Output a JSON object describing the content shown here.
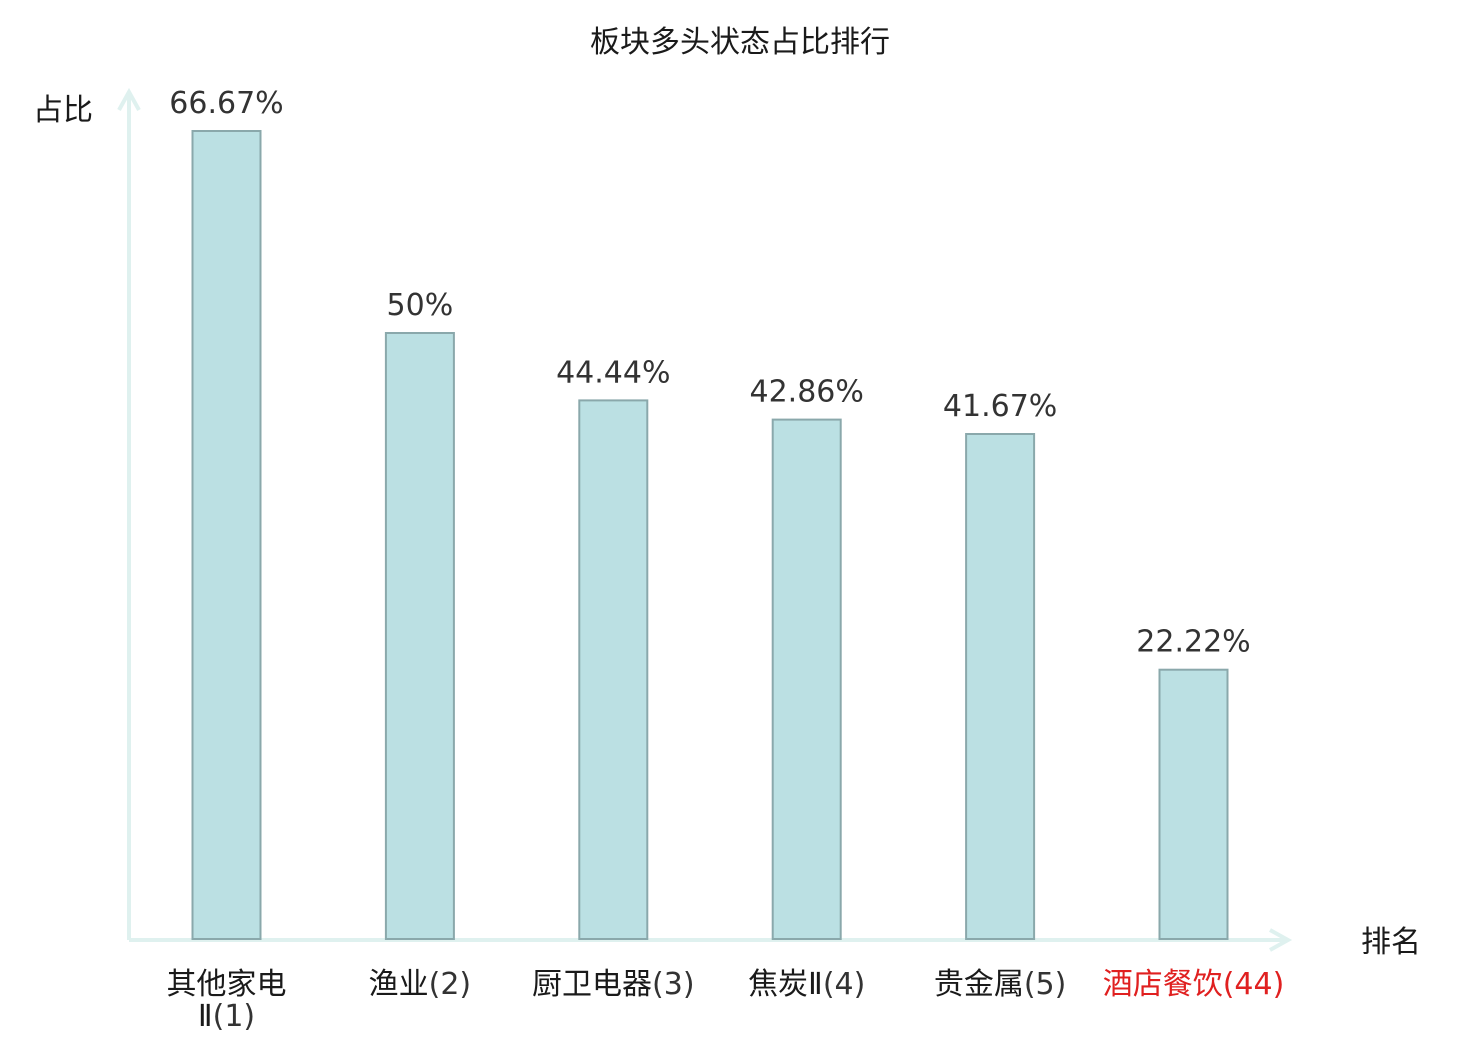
{
  "chart_data": {
    "type": "bar",
    "title": "板块多头状态占比排行",
    "ylabel": "占比",
    "xlabel": "排名",
    "categories": [
      {
        "name": "其他家电Ⅱ",
        "rank": "(1)"
      },
      {
        "name": "渔业",
        "rank": "(2)"
      },
      {
        "name": "厨卫电器",
        "rank": "(3)"
      },
      {
        "name": "焦炭Ⅱ",
        "rank": "(4)"
      },
      {
        "name": "贵金属",
        "rank": "(5)"
      },
      {
        "name": "酒店餐饮",
        "rank": "(44)"
      }
    ],
    "values": [
      66.67,
      50,
      44.44,
      42.86,
      41.67,
      22.22
    ],
    "value_labels": [
      "66.67%",
      "50%",
      "44.44%",
      "42.86%",
      "41.67%",
      "22.22%"
    ],
    "ylim": [
      0,
      66.67
    ],
    "grid": false,
    "colors": {
      "bar_fill": "#bbe0e3",
      "bar_stroke": "#8aa8ab",
      "axis": "#dff1ef",
      "highlight_label": "#e02020",
      "name_label": "#1a1a1a",
      "rank_label": "#333333"
    },
    "highlight_index": 5
  }
}
